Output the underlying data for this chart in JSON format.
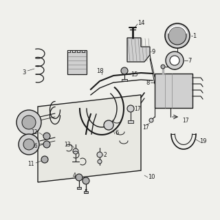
{
  "bg_color": "#f0f0ec",
  "lc": "#1a1a1a",
  "gray1": "#b0b0b0",
  "gray2": "#d0d0d0",
  "white": "#ffffff"
}
